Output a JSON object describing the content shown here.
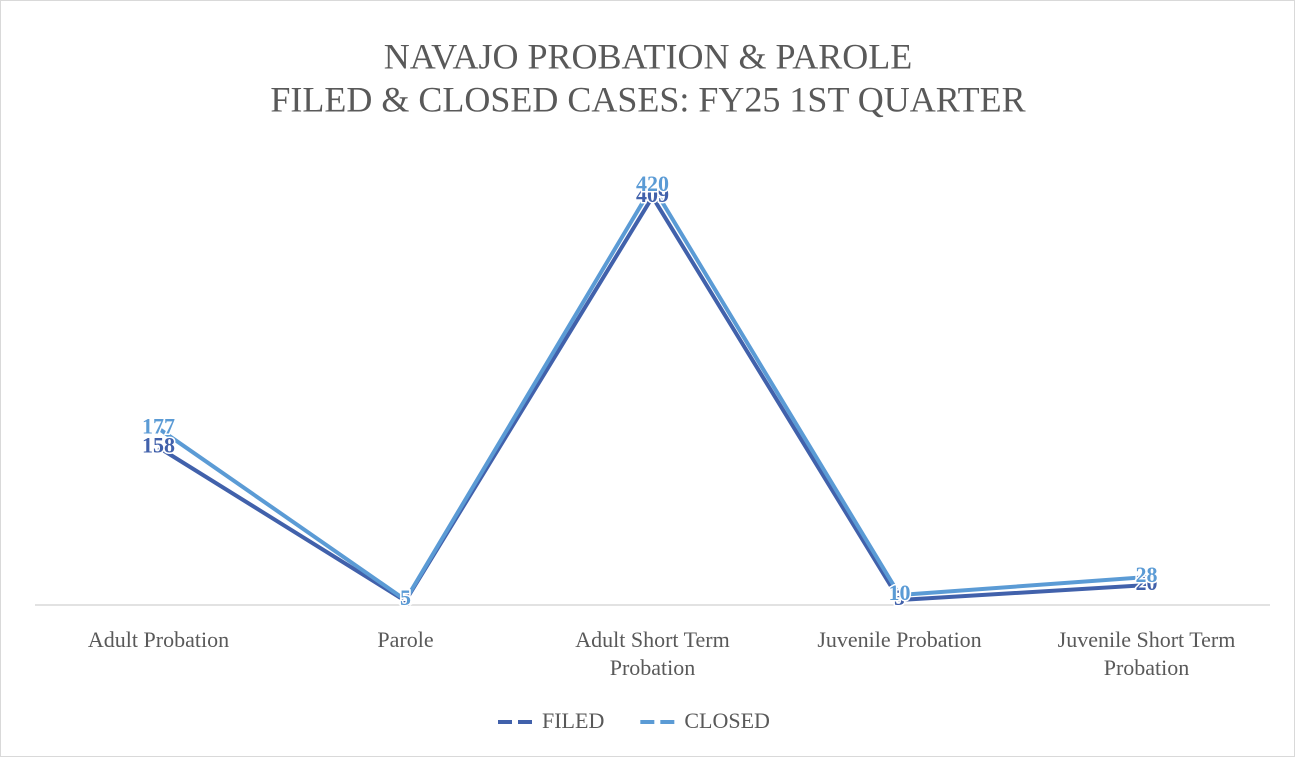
{
  "chart_data": {
    "type": "line",
    "title": "NAVAJO PROBATION & PAROLE",
    "subtitle": "FILED & CLOSED CASES: FY25 1ST QUARTER",
    "categories": [
      "Adult Probation",
      "Parole",
      "Adult Short Term Probation",
      "Juvenile Probation",
      "Juvenile Short Term Probation"
    ],
    "series": [
      {
        "name": "FILED",
        "color": "#4161ab",
        "values": [
          158,
          4,
          409,
          5,
          20
        ]
      },
      {
        "name": "CLOSED",
        "color": "#5b9bd5",
        "values": [
          177,
          5,
          420,
          10,
          28
        ]
      }
    ],
    "legend": "bottom"
  }
}
